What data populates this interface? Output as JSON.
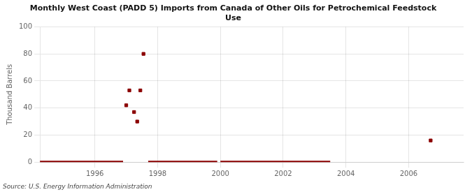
{
  "chart_data": {
    "type": "scatter",
    "title": "Monthly West Coast (PADD 5) Imports from Canada of Other Oils for Petrochemical Feedstock\nUse",
    "ylabel": "Thousand Barrels",
    "annotation": "Source: U.S. Energy Information Administration",
    "xlim": [
      1994.25,
      2007.75
    ],
    "xticks": [
      1996,
      1998,
      2000,
      2002,
      2004,
      2006
    ],
    "ylim": [
      0,
      100
    ],
    "yticks": [
      0,
      20,
      40,
      60,
      80,
      100
    ],
    "grid": true,
    "series": [
      {
        "type": "line",
        "color": "#8b0000",
        "line_style": "solid",
        "segments": [
          [
            1994.25,
            1996.9
          ],
          [
            1997.7,
            1999.9
          ],
          [
            2000.0,
            2003.5
          ]
        ],
        "values": [
          0,
          0,
          0
        ]
      },
      {
        "type": "scatter",
        "color": "#8b0000",
        "marker": "square",
        "x": [
          1997.0,
          1997.1,
          1997.25,
          1997.35,
          1997.45,
          1997.55,
          2006.7
        ],
        "values": [
          42,
          53,
          37,
          30,
          53,
          80,
          16
        ]
      }
    ]
  }
}
